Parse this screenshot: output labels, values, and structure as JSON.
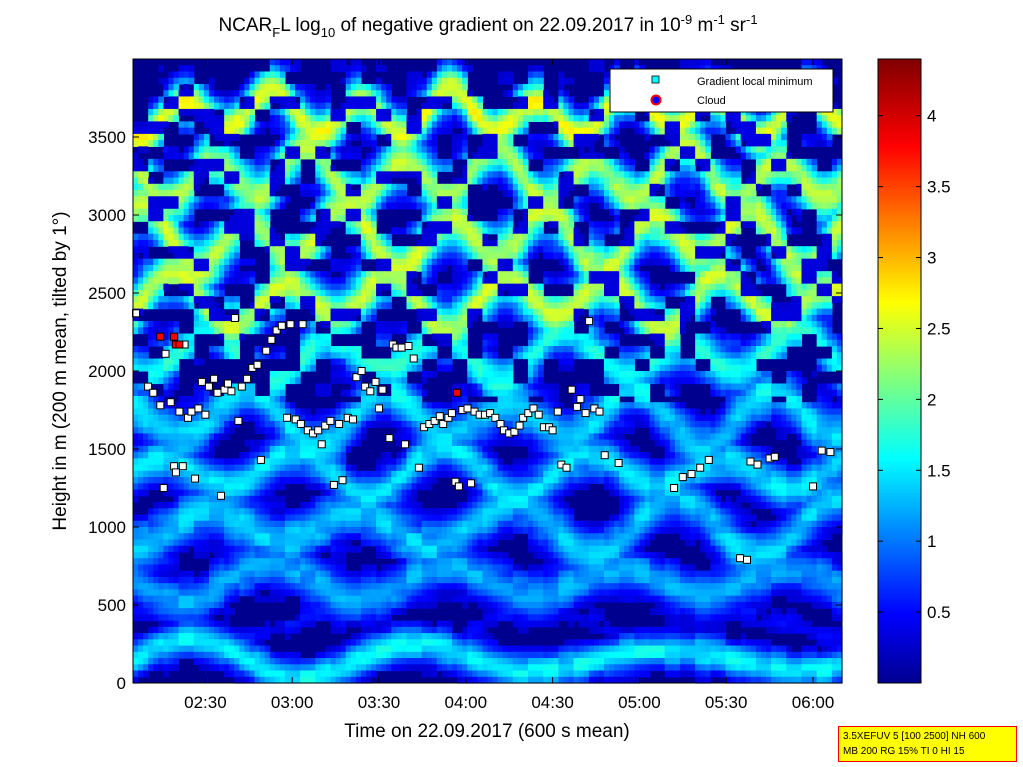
{
  "title": {
    "prefix": "NCAR",
    "sub_f": "F",
    "mid": "L log",
    "sub_10": "10",
    "suffix_a": " of negative gradient on 22.09.2017 in 10",
    "sup_a": "-9",
    "suffix_b": " m",
    "sup_b": "-1",
    "suffix_c": " sr",
    "sup_c": "-1"
  },
  "info_box": {
    "line1": "3.5XEFUV 5 [100 2500] NH 600",
    "line2": "MB 200 RG 15% TI 0 HI 15"
  },
  "colors": {
    "background": "#00008f",
    "marker_square": "#ffffff",
    "marker_cloud": "#ff0000",
    "legend_marker": "#00ffff",
    "legend_cloud": "#0000ff"
  },
  "chart_data": {
    "type": "heatmap",
    "xlabel": "Time on 22.09.2017 (600 s mean)",
    "ylabel": "Height in m (200 m mean, tilted by 1°)",
    "colormap": "jet",
    "color_range": [
      0,
      4.4
    ],
    "x_range_hours": [
      2.083,
      6.167
    ],
    "y_range": [
      0,
      4000
    ],
    "x_ticks": [
      {
        "h": 2.5,
        "label": "02:30"
      },
      {
        "h": 3.0,
        "label": "03:00"
      },
      {
        "h": 3.5,
        "label": "03:30"
      },
      {
        "h": 4.0,
        "label": "04:00"
      },
      {
        "h": 4.5,
        "label": "04:30"
      },
      {
        "h": 5.0,
        "label": "05:00"
      },
      {
        "h": 5.5,
        "label": "05:30"
      },
      {
        "h": 6.0,
        "label": "06:00"
      }
    ],
    "y_ticks": [
      0,
      500,
      1000,
      1500,
      2000,
      2500,
      3000,
      3500
    ],
    "colorbar_ticks": [
      {
        "v": 0.5,
        "label": "0.5"
      },
      {
        "v": 1,
        "label": "1"
      },
      {
        "v": 1.5,
        "label": "1.5"
      },
      {
        "v": 2,
        "label": "2"
      },
      {
        "v": 2.5,
        "label": "2.5"
      },
      {
        "v": 3,
        "label": "3"
      },
      {
        "v": 3.5,
        "label": "3.5"
      },
      {
        "v": 4,
        "label": "4"
      }
    ],
    "legend": [
      {
        "label": "Gradient local minimum",
        "marker": "square"
      },
      {
        "label": "Cloud",
        "marker": "circle"
      }
    ],
    "bands": [
      {
        "h": 150,
        "w": 120,
        "v": 1.55
      },
      {
        "h": 380,
        "w": 80,
        "v": 0.45
      },
      {
        "h": 650,
        "w": 160,
        "v": 1.2
      },
      {
        "h": 1000,
        "w": 180,
        "v": 1.35
      },
      {
        "h": 1350,
        "w": 150,
        "v": 1.45
      },
      {
        "h": 1700,
        "w": 180,
        "v": 1.4
      },
      {
        "h": 2100,
        "w": 160,
        "v": 1.6
      },
      {
        "h": 2450,
        "w": 180,
        "v": 2.3
      },
      {
        "h": 2850,
        "w": 200,
        "v": 2.3
      },
      {
        "h": 3250,
        "w": 180,
        "v": 2.2
      },
      {
        "h": 3650,
        "w": 150,
        "v": 2.5
      }
    ],
    "minima": [
      {
        "h": 2.1,
        "y": 2370
      },
      {
        "h": 2.17,
        "y": 1900
      },
      {
        "h": 2.2,
        "y": 1860
      },
      {
        "h": 2.24,
        "y": 1780
      },
      {
        "h": 2.26,
        "y": 1250
      },
      {
        "h": 2.27,
        "y": 2110
      },
      {
        "h": 2.3,
        "y": 1800
      },
      {
        "h": 2.32,
        "y": 1390
      },
      {
        "h": 2.33,
        "y": 1350
      },
      {
        "h": 2.35,
        "y": 1740
      },
      {
        "h": 2.37,
        "y": 1390
      },
      {
        "h": 2.38,
        "y": 2170
      },
      {
        "h": 2.4,
        "y": 1700
      },
      {
        "h": 2.42,
        "y": 1740
      },
      {
        "h": 2.44,
        "y": 1310
      },
      {
        "h": 2.46,
        "y": 1760
      },
      {
        "h": 2.48,
        "y": 1930
      },
      {
        "h": 2.5,
        "y": 1720
      },
      {
        "h": 2.52,
        "y": 1900
      },
      {
        "h": 2.55,
        "y": 1950
      },
      {
        "h": 2.57,
        "y": 1860
      },
      {
        "h": 2.59,
        "y": 1200
      },
      {
        "h": 2.61,
        "y": 1880
      },
      {
        "h": 2.63,
        "y": 1920
      },
      {
        "h": 2.65,
        "y": 1870
      },
      {
        "h": 2.67,
        "y": 2340
      },
      {
        "h": 2.69,
        "y": 1680
      },
      {
        "h": 2.71,
        "y": 1900
      },
      {
        "h": 2.74,
        "y": 1950
      },
      {
        "h": 2.77,
        "y": 2020
      },
      {
        "h": 2.8,
        "y": 2040
      },
      {
        "h": 2.82,
        "y": 1430
      },
      {
        "h": 2.85,
        "y": 2130
      },
      {
        "h": 2.88,
        "y": 2200
      },
      {
        "h": 2.91,
        "y": 2260
      },
      {
        "h": 2.94,
        "y": 2290
      },
      {
        "h": 2.97,
        "y": 1700
      },
      {
        "h": 2.99,
        "y": 2300
      },
      {
        "h": 3.02,
        "y": 1690
      },
      {
        "h": 3.05,
        "y": 1660
      },
      {
        "h": 3.06,
        "y": 2300
      },
      {
        "h": 3.09,
        "y": 1620
      },
      {
        "h": 3.12,
        "y": 1600
      },
      {
        "h": 3.15,
        "y": 1620
      },
      {
        "h": 3.17,
        "y": 1530
      },
      {
        "h": 3.19,
        "y": 1650
      },
      {
        "h": 3.22,
        "y": 1680
      },
      {
        "h": 3.24,
        "y": 1270
      },
      {
        "h": 3.27,
        "y": 1660
      },
      {
        "h": 3.29,
        "y": 1300
      },
      {
        "h": 3.32,
        "y": 1700
      },
      {
        "h": 3.35,
        "y": 1690
      },
      {
        "h": 3.37,
        "y": 1960
      },
      {
        "h": 3.4,
        "y": 2000
      },
      {
        "h": 3.42,
        "y": 1900
      },
      {
        "h": 3.45,
        "y": 1870
      },
      {
        "h": 3.48,
        "y": 1930
      },
      {
        "h": 3.5,
        "y": 1760
      },
      {
        "h": 3.52,
        "y": 1880
      },
      {
        "h": 3.56,
        "y": 1570
      },
      {
        "h": 3.58,
        "y": 2170
      },
      {
        "h": 3.6,
        "y": 2150
      },
      {
        "h": 3.63,
        "y": 2150
      },
      {
        "h": 3.65,
        "y": 1530
      },
      {
        "h": 3.67,
        "y": 2160
      },
      {
        "h": 3.7,
        "y": 2080
      },
      {
        "h": 3.73,
        "y": 1380
      },
      {
        "h": 3.76,
        "y": 1640
      },
      {
        "h": 3.79,
        "y": 1660
      },
      {
        "h": 3.82,
        "y": 1680
      },
      {
        "h": 3.85,
        "y": 1710
      },
      {
        "h": 3.87,
        "y": 1660
      },
      {
        "h": 3.9,
        "y": 1700
      },
      {
        "h": 3.92,
        "y": 1730
      },
      {
        "h": 3.94,
        "y": 1290
      },
      {
        "h": 3.96,
        "y": 1260
      },
      {
        "h": 3.98,
        "y": 1750
      },
      {
        "h": 4.01,
        "y": 1760
      },
      {
        "h": 4.03,
        "y": 1280
      },
      {
        "h": 4.05,
        "y": 1740
      },
      {
        "h": 4.08,
        "y": 1720
      },
      {
        "h": 4.11,
        "y": 1720
      },
      {
        "h": 4.14,
        "y": 1730
      },
      {
        "h": 4.17,
        "y": 1700
      },
      {
        "h": 4.2,
        "y": 1660
      },
      {
        "h": 4.22,
        "y": 1620
      },
      {
        "h": 4.25,
        "y": 1600
      },
      {
        "h": 4.28,
        "y": 1610
      },
      {
        "h": 4.31,
        "y": 1650
      },
      {
        "h": 4.33,
        "y": 1700
      },
      {
        "h": 4.36,
        "y": 1730
      },
      {
        "h": 4.39,
        "y": 1760
      },
      {
        "h": 4.42,
        "y": 1720
      },
      {
        "h": 4.45,
        "y": 1640
      },
      {
        "h": 4.48,
        "y": 1640
      },
      {
        "h": 4.5,
        "y": 1620
      },
      {
        "h": 4.53,
        "y": 1740
      },
      {
        "h": 4.55,
        "y": 1400
      },
      {
        "h": 4.58,
        "y": 1380
      },
      {
        "h": 4.61,
        "y": 1880
      },
      {
        "h": 4.64,
        "y": 1770
      },
      {
        "h": 4.66,
        "y": 1820
      },
      {
        "h": 4.69,
        "y": 1730
      },
      {
        "h": 4.71,
        "y": 2320
      },
      {
        "h": 4.74,
        "y": 1760
      },
      {
        "h": 4.77,
        "y": 1740
      },
      {
        "h": 4.8,
        "y": 1460
      },
      {
        "h": 4.88,
        "y": 1410
      },
      {
        "h": 5.2,
        "y": 1250
      },
      {
        "h": 5.25,
        "y": 1320
      },
      {
        "h": 5.3,
        "y": 1340
      },
      {
        "h": 5.35,
        "y": 1380
      },
      {
        "h": 5.4,
        "y": 1430
      },
      {
        "h": 5.58,
        "y": 800
      },
      {
        "h": 5.62,
        "y": 790
      },
      {
        "h": 5.64,
        "y": 1420
      },
      {
        "h": 5.68,
        "y": 1400
      },
      {
        "h": 5.75,
        "y": 1440
      },
      {
        "h": 5.78,
        "y": 1450
      },
      {
        "h": 6.0,
        "y": 1260
      },
      {
        "h": 6.05,
        "y": 1490
      },
      {
        "h": 6.1,
        "y": 1480
      }
    ],
    "clouds": [
      {
        "h": 2.24,
        "y": 2220
      },
      {
        "h": 2.32,
        "y": 2220
      },
      {
        "h": 2.33,
        "y": 2170
      },
      {
        "h": 2.35,
        "y": 2170
      },
      {
        "h": 3.95,
        "y": 1860
      }
    ]
  }
}
